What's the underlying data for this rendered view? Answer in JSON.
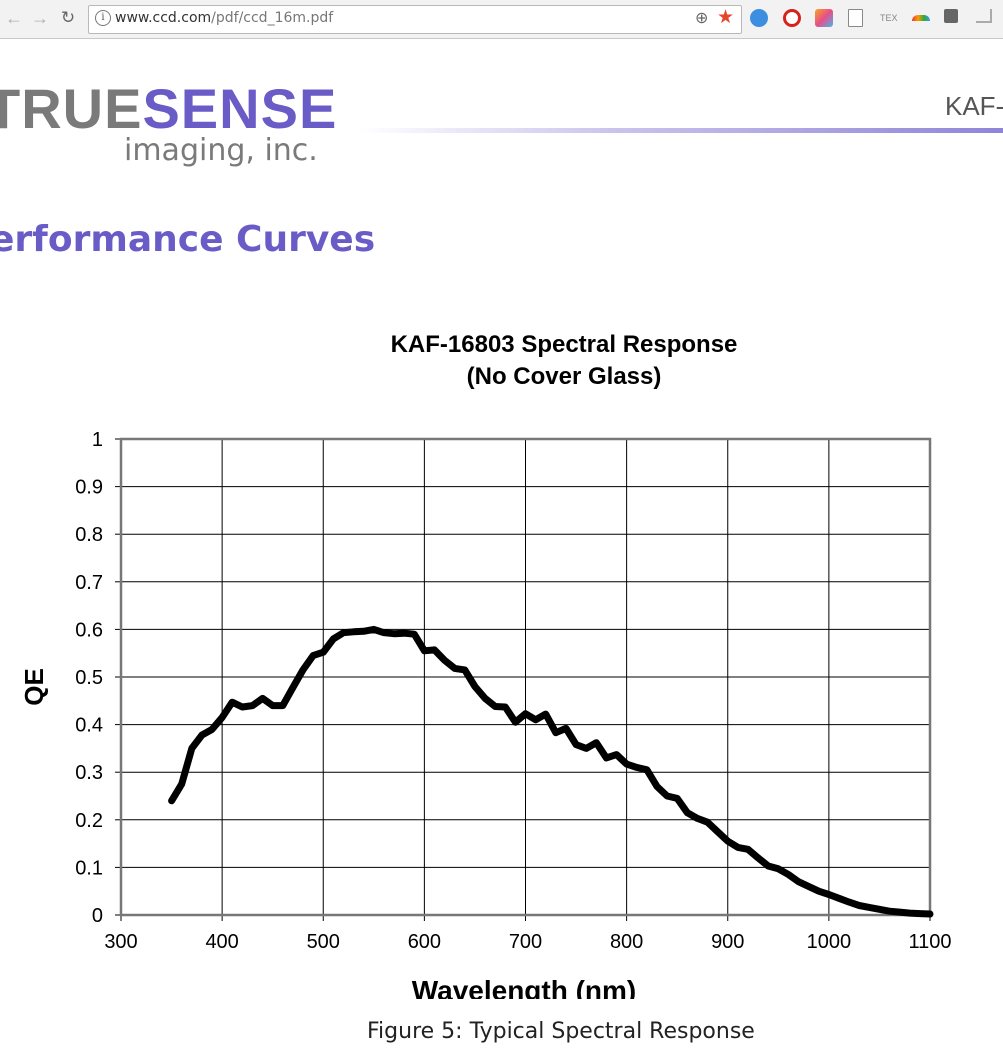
{
  "browser": {
    "url_host": "www.ccd.com",
    "url_path": "/pdf/ccd_16m.pdf",
    "back_icon": "arrow-left",
    "forward_icon": "arrow-right",
    "reload_icon": "reload",
    "info_icon": "info-circle",
    "zoom_icon": "magnifier-plus",
    "bookmark_icon": "star",
    "bookmark_color": "#e8452c",
    "extension_icons": [
      "pin-icon",
      "opera-icon",
      "k-icon",
      "document-icon",
      "tex-icon",
      "rainbow-icon",
      "square-icon",
      "share-icon"
    ]
  },
  "header": {
    "logo_true": "TRUESENSE",
    "logo_sub": "imaging, inc.",
    "doc_code": "KAF-",
    "brand_color": "#6a5cc6",
    "grey_color": "#7a7a7a"
  },
  "section_title": "erformance Curves",
  "chart_data": {
    "type": "line",
    "title": "KAF-16803 Spectral Response",
    "subtitle": "(No Cover Glass)",
    "xlabel": "Wavelength (nm)",
    "ylabel": "QE",
    "xlim": [
      300,
      1100
    ],
    "ylim": [
      0,
      1
    ],
    "x_ticks": [
      "300",
      "400",
      "500",
      "600",
      "700",
      "800",
      "900",
      "1000",
      "1100"
    ],
    "y_ticks": [
      "0",
      "0.1",
      "0.2",
      "0.3",
      "0.4",
      "0.5",
      "0.6",
      "0.7",
      "0.8",
      "0.9",
      "1"
    ],
    "grid": true,
    "series": [
      {
        "color": "#000000",
        "x": [
          350,
          360,
          370,
          380,
          390,
          400,
          410,
          420,
          430,
          440,
          450,
          460,
          470,
          480,
          490,
          500,
          510,
          520,
          530,
          540,
          550,
          560,
          570,
          580,
          590,
          600,
          610,
          620,
          630,
          640,
          650,
          660,
          670,
          680,
          690,
          700,
          710,
          720,
          730,
          740,
          750,
          760,
          770,
          780,
          790,
          800,
          810,
          820,
          830,
          840,
          850,
          860,
          870,
          880,
          890,
          900,
          910,
          920,
          930,
          940,
          950,
          960,
          970,
          980,
          990,
          1000,
          1010,
          1020,
          1030,
          1040,
          1050,
          1060,
          1070,
          1080,
          1090,
          1100
        ],
        "y": [
          0.24,
          0.275,
          0.35,
          0.378,
          0.39,
          0.415,
          0.447,
          0.437,
          0.44,
          0.455,
          0.44,
          0.44,
          0.478,
          0.515,
          0.545,
          0.552,
          0.58,
          0.593,
          0.595,
          0.596,
          0.6,
          0.593,
          0.591,
          0.592,
          0.59,
          0.555,
          0.557,
          0.535,
          0.518,
          0.515,
          0.48,
          0.455,
          0.438,
          0.437,
          0.405,
          0.423,
          0.41,
          0.422,
          0.383,
          0.392,
          0.358,
          0.35,
          0.362,
          0.33,
          0.337,
          0.317,
          0.31,
          0.305,
          0.27,
          0.25,
          0.245,
          0.215,
          0.203,
          0.195,
          0.175,
          0.155,
          0.142,
          0.138,
          0.12,
          0.103,
          0.097,
          0.085,
          0.07,
          0.06,
          0.05,
          0.043,
          0.035,
          0.027,
          0.02,
          0.016,
          0.012,
          0.008,
          0.006,
          0.004,
          0.003,
          0.002
        ]
      }
    ]
  },
  "caption": "Figure 5: Typical Spectral Response"
}
